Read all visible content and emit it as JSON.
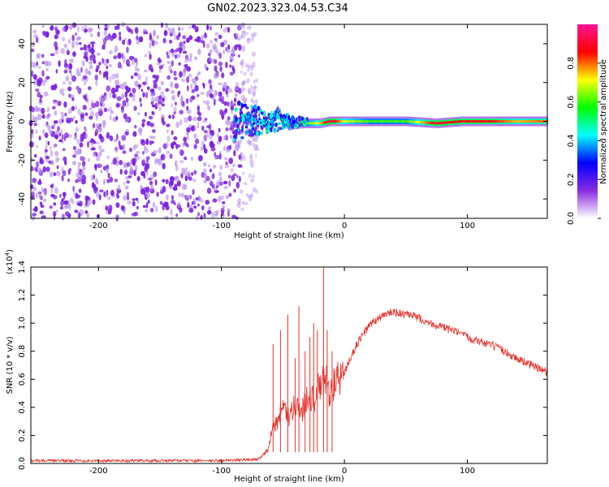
{
  "title": "GN02.2023.323.04.53.C34",
  "chart_data": [
    {
      "type": "heatmap",
      "xlabel": "Height of straight line (km)",
      "ylabel": "Frequency (Hz)",
      "xlim": [
        -255,
        165
      ],
      "ylim": [
        -50,
        50
      ],
      "xticks": [
        -200,
        -100,
        0,
        100
      ],
      "yticks": [
        -40,
        -20,
        0,
        20,
        40
      ],
      "noise_region_x": [
        -255,
        -80
      ],
      "ridge": [
        {
          "x": -88,
          "y": -4,
          "amp": 0.3
        },
        {
          "x": -82,
          "y": 0,
          "amp": 0.35
        },
        {
          "x": -75,
          "y": 3,
          "amp": 0.4
        },
        {
          "x": -68,
          "y": 0,
          "amp": 0.45
        },
        {
          "x": -60,
          "y": -2,
          "amp": 0.5
        },
        {
          "x": -55,
          "y": 5,
          "amp": 0.5
        },
        {
          "x": -50,
          "y": 1,
          "amp": 0.55
        },
        {
          "x": -45,
          "y": -2,
          "amp": 0.55
        },
        {
          "x": -40,
          "y": -1,
          "amp": 0.58
        },
        {
          "x": -30,
          "y": -1,
          "amp": 0.62
        },
        {
          "x": -20,
          "y": -1,
          "amp": 0.75
        },
        {
          "x": -12,
          "y": 0,
          "amp": 0.95
        },
        {
          "x": 0,
          "y": 0,
          "amp": 0.7
        },
        {
          "x": 20,
          "y": 0,
          "amp": 0.6
        },
        {
          "x": 50,
          "y": 0,
          "amp": 0.6
        },
        {
          "x": 75,
          "y": -1,
          "amp": 0.9
        },
        {
          "x": 95,
          "y": 0,
          "amp": 0.85
        },
        {
          "x": 120,
          "y": 0,
          "amp": 0.85
        },
        {
          "x": 140,
          "y": 0,
          "amp": 0.75
        },
        {
          "x": 160,
          "y": 0,
          "amp": 0.8
        }
      ],
      "colorbar": {
        "label": "Normalized spectral amplitude",
        "range": [
          0.0,
          1.0
        ],
        "ticks": [
          "0.0",
          "0.2",
          "0.4",
          "0.6",
          "0.8"
        ],
        "colors": [
          "#ffffff",
          "#8a2be2",
          "#0000ff",
          "#00ffff",
          "#00ff00",
          "#ffff00",
          "#ff0000",
          "#ff1493"
        ]
      }
    },
    {
      "type": "line",
      "xlabel": "Height of straight line (km)",
      "ylabel": "SNR (10 * v/v)",
      "scale_label": "(x10",
      "scale_exp": "4",
      "scale_close": ")",
      "xlim": [
        -255,
        165
      ],
      "ylim": [
        0,
        1.4
      ],
      "xticks": [
        -200,
        -100,
        0,
        100
      ],
      "yticks": [
        "0.0",
        "0.2",
        "0.4",
        "0.6",
        "0.8",
        "1.0",
        "1.2",
        "1.4"
      ],
      "color": "#e8332e",
      "series": [
        {
          "x": [
            -255,
            -200,
            -100,
            -70,
            -62,
            -58,
            -55,
            -52,
            -48,
            -45,
            -40,
            -35,
            -30,
            -25,
            -20,
            -15,
            -12,
            -10,
            -5,
            0,
            10,
            20,
            30,
            40,
            50,
            60,
            70,
            80,
            90,
            95,
            100,
            110,
            120,
            130,
            140,
            150,
            165
          ],
          "y": [
            0.02,
            0.02,
            0.02,
            0.03,
            0.1,
            0.25,
            0.3,
            0.35,
            0.4,
            0.3,
            0.45,
            0.35,
            0.5,
            0.45,
            0.55,
            0.6,
            0.5,
            0.55,
            0.6,
            0.65,
            0.85,
            0.98,
            1.05,
            1.08,
            1.06,
            1.04,
            1.0,
            0.97,
            0.94,
            0.92,
            0.9,
            0.87,
            0.84,
            0.8,
            0.75,
            0.71,
            0.65
          ]
        }
      ],
      "spikes": [
        {
          "x": -58,
          "y": 0.85
        },
        {
          "x": -52,
          "y": 0.95
        },
        {
          "x": -46,
          "y": 1.06
        },
        {
          "x": -40,
          "y": 0.75
        },
        {
          "x": -37,
          "y": 1.12
        },
        {
          "x": -32,
          "y": 0.8
        },
        {
          "x": -28,
          "y": 0.9
        },
        {
          "x": -25,
          "y": 1.0
        },
        {
          "x": -22,
          "y": 0.95
        },
        {
          "x": -17,
          "y": 1.4
        },
        {
          "x": -14,
          "y": 0.95
        },
        {
          "x": -10,
          "y": 0.8
        }
      ]
    }
  ]
}
